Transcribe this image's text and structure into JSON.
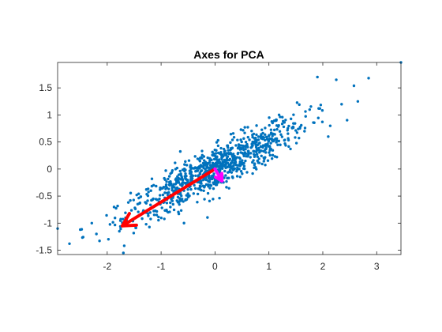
{
  "chart_data": {
    "type": "scatter",
    "title": "Axes for PCA",
    "xlabel": "",
    "ylabel": "",
    "xlim": [
      -2.92,
      3.45
    ],
    "ylim": [
      -1.58,
      1.97
    ],
    "x_ticks": [
      -2,
      -1,
      0,
      1,
      2,
      3
    ],
    "y_ticks": [
      -1.5,
      -1,
      -0.5,
      0,
      0.5,
      1,
      1.5
    ],
    "x_tick_labels": [
      "-2",
      "-1",
      "0",
      "1",
      "2",
      "3"
    ],
    "y_tick_labels": [
      "-1.5",
      "-1",
      "-0.5",
      "0",
      "0.5",
      "1",
      "1.5"
    ],
    "grid": false,
    "box": true,
    "scatter": {
      "color": "#0072BD",
      "n_points": 900,
      "mean": [
        0,
        0
      ],
      "std_along_principal": 0.95,
      "std_along_minor": 0.18,
      "principal_direction": [
        0.88,
        0.47
      ],
      "extreme_points": [
        {
          "x": 3.45,
          "y": 1.97
        },
        {
          "x": 2.85,
          "y": 1.68
        },
        {
          "x": 2.25,
          "y": 1.65
        },
        {
          "x": 1.9,
          "y": 1.7
        },
        {
          "x": 2.65,
          "y": 1.25
        },
        {
          "x": -2.92,
          "y": -1.1
        },
        {
          "x": -2.7,
          "y": -1.38
        },
        {
          "x": -2.2,
          "y": -1.2
        },
        {
          "x": -1.7,
          "y": -1.55
        },
        {
          "x": -2.5,
          "y": -1.12
        }
      ]
    },
    "vectors": [
      {
        "from": [
          0,
          0
        ],
        "to": [
          -1.72,
          -1.05
        ],
        "color": "#FF0000"
      },
      {
        "from": [
          0,
          0
        ],
        "to": [
          0.13,
          -0.22
        ],
        "color": "#FF00FF"
      }
    ]
  }
}
